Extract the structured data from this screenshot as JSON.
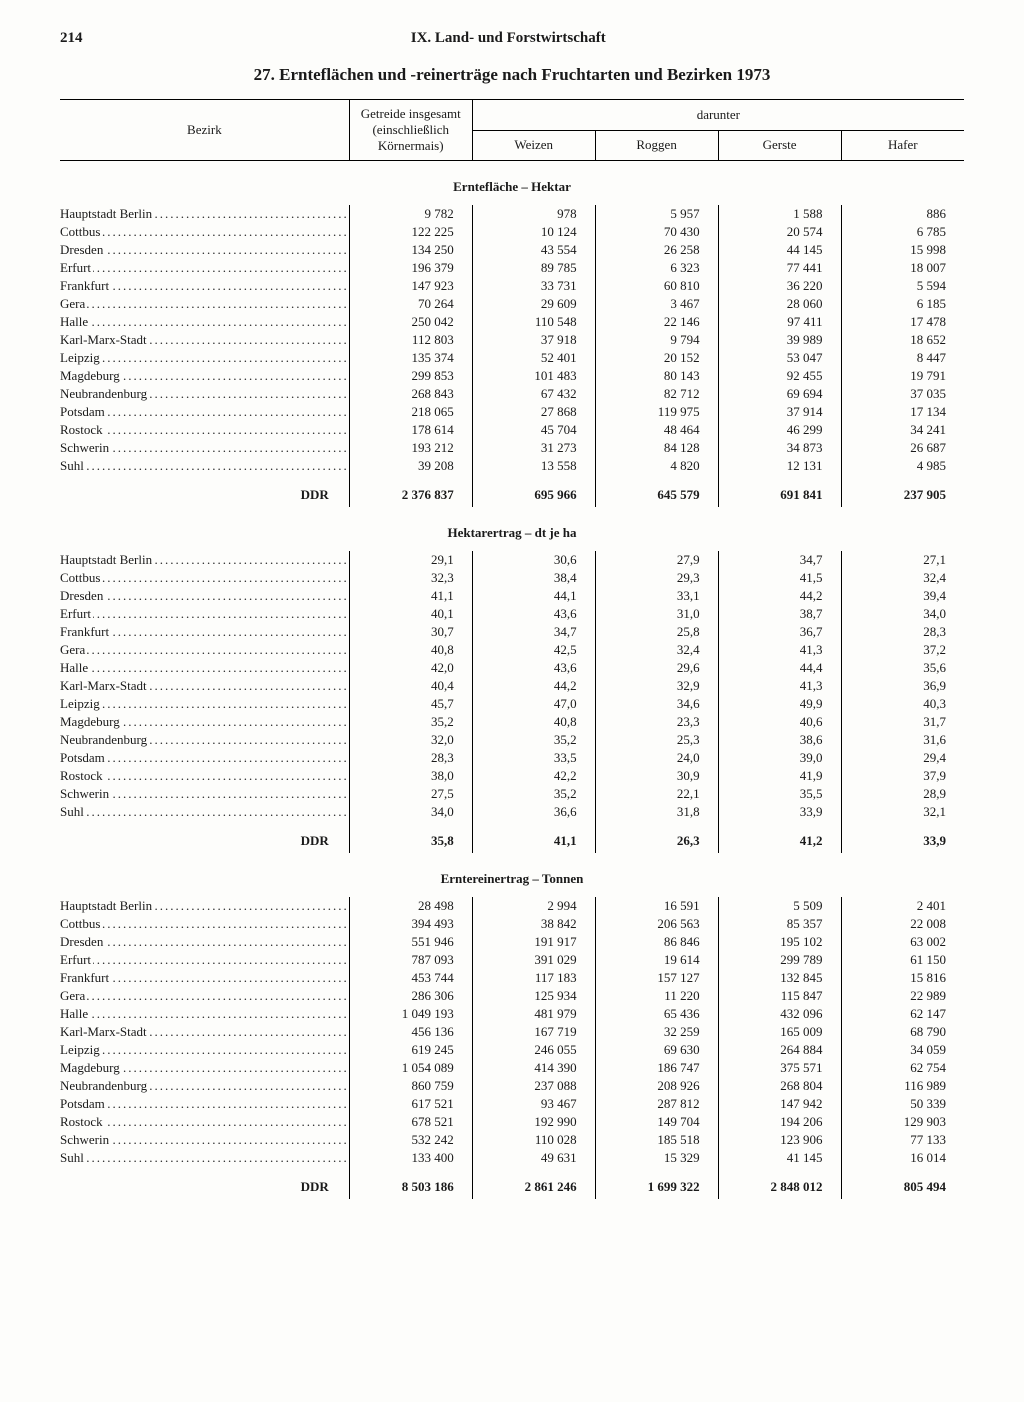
{
  "page_number": "214",
  "chapter": "IX. Land- und Forstwirtschaft",
  "title": "27. Ernteflächen und -reinerträge nach Fruchtarten und Bezirken 1973",
  "columns": {
    "bezirk": "Bezirk",
    "getreide": "Getreide insgesamt\n(einschließlich\nKörnermais)",
    "darunter": "darunter",
    "weizen": "Weizen",
    "roggen": "Roggen",
    "gerste": "Gerste",
    "hafer": "Hafer"
  },
  "total_label": "DDR",
  "sections": [
    {
      "title": "Erntefläche – Hektar",
      "rows": [
        {
          "b": "Hauptstadt Berlin",
          "v": [
            "9 782",
            "978",
            "5 957",
            "1 588",
            "886"
          ]
        },
        {
          "b": "Cottbus",
          "v": [
            "122 225",
            "10 124",
            "70 430",
            "20 574",
            "6 785"
          ]
        },
        {
          "b": "Dresden",
          "v": [
            "134 250",
            "43 554",
            "26 258",
            "44 145",
            "15 998"
          ]
        },
        {
          "b": "Erfurt",
          "v": [
            "196 379",
            "89 785",
            "6 323",
            "77 441",
            "18 007"
          ]
        },
        {
          "b": "Frankfurt",
          "v": [
            "147 923",
            "33 731",
            "60 810",
            "36 220",
            "5 594"
          ]
        },
        {
          "b": "Gera",
          "v": [
            "70 264",
            "29 609",
            "3 467",
            "28 060",
            "6 185"
          ]
        },
        {
          "b": "Halle",
          "v": [
            "250 042",
            "110 548",
            "22 146",
            "97 411",
            "17 478"
          ]
        },
        {
          "b": "Karl-Marx-Stadt",
          "v": [
            "112 803",
            "37 918",
            "9 794",
            "39 989",
            "18 652"
          ]
        },
        {
          "b": "Leipzig",
          "v": [
            "135 374",
            "52 401",
            "20 152",
            "53 047",
            "8 447"
          ]
        },
        {
          "b": "Magdeburg",
          "v": [
            "299 853",
            "101 483",
            "80 143",
            "92 455",
            "19 791"
          ]
        },
        {
          "b": "Neubrandenburg",
          "v": [
            "268 843",
            "67 432",
            "82 712",
            "69 694",
            "37 035"
          ]
        },
        {
          "b": "Potsdam",
          "v": [
            "218 065",
            "27 868",
            "119 975",
            "37 914",
            "17 134"
          ]
        },
        {
          "b": "Rostock",
          "v": [
            "178 614",
            "45 704",
            "48 464",
            "46 299",
            "34 241"
          ]
        },
        {
          "b": "Schwerin",
          "v": [
            "193 212",
            "31 273",
            "84 128",
            "34 873",
            "26 687"
          ]
        },
        {
          "b": "Suhl",
          "v": [
            "39 208",
            "13 558",
            "4 820",
            "12 131",
            "4 985"
          ]
        }
      ],
      "total": [
        "2 376 837",
        "695 966",
        "645 579",
        "691 841",
        "237 905"
      ]
    },
    {
      "title": "Hektarertrag – dt je ha",
      "rows": [
        {
          "b": "Hauptstadt Berlin",
          "v": [
            "29,1",
            "30,6",
            "27,9",
            "34,7",
            "27,1"
          ]
        },
        {
          "b": "Cottbus",
          "v": [
            "32,3",
            "38,4",
            "29,3",
            "41,5",
            "32,4"
          ]
        },
        {
          "b": "Dresden",
          "v": [
            "41,1",
            "44,1",
            "33,1",
            "44,2",
            "39,4"
          ]
        },
        {
          "b": "Erfurt",
          "v": [
            "40,1",
            "43,6",
            "31,0",
            "38,7",
            "34,0"
          ]
        },
        {
          "b": "Frankfurt",
          "v": [
            "30,7",
            "34,7",
            "25,8",
            "36,7",
            "28,3"
          ]
        },
        {
          "b": "Gera",
          "v": [
            "40,8",
            "42,5",
            "32,4",
            "41,3",
            "37,2"
          ]
        },
        {
          "b": "Halle",
          "v": [
            "42,0",
            "43,6",
            "29,6",
            "44,4",
            "35,6"
          ]
        },
        {
          "b": "Karl-Marx-Stadt",
          "v": [
            "40,4",
            "44,2",
            "32,9",
            "41,3",
            "36,9"
          ]
        },
        {
          "b": "Leipzig",
          "v": [
            "45,7",
            "47,0",
            "34,6",
            "49,9",
            "40,3"
          ]
        },
        {
          "b": "Magdeburg",
          "v": [
            "35,2",
            "40,8",
            "23,3",
            "40,6",
            "31,7"
          ]
        },
        {
          "b": "Neubrandenburg",
          "v": [
            "32,0",
            "35,2",
            "25,3",
            "38,6",
            "31,6"
          ]
        },
        {
          "b": "Potsdam",
          "v": [
            "28,3",
            "33,5",
            "24,0",
            "39,0",
            "29,4"
          ]
        },
        {
          "b": "Rostock",
          "v": [
            "38,0",
            "42,2",
            "30,9",
            "41,9",
            "37,9"
          ]
        },
        {
          "b": "Schwerin",
          "v": [
            "27,5",
            "35,2",
            "22,1",
            "35,5",
            "28,9"
          ]
        },
        {
          "b": "Suhl",
          "v": [
            "34,0",
            "36,6",
            "31,8",
            "33,9",
            "32,1"
          ]
        }
      ],
      "total": [
        "35,8",
        "41,1",
        "26,3",
        "41,2",
        "33,9"
      ]
    },
    {
      "title": "Erntereinertrag – Tonnen",
      "rows": [
        {
          "b": "Hauptstadt Berlin",
          "v": [
            "28 498",
            "2 994",
            "16 591",
            "5 509",
            "2 401"
          ]
        },
        {
          "b": "Cottbus",
          "v": [
            "394 493",
            "38 842",
            "206 563",
            "85 357",
            "22 008"
          ]
        },
        {
          "b": "Dresden",
          "v": [
            "551 946",
            "191 917",
            "86 846",
            "195 102",
            "63 002"
          ]
        },
        {
          "b": "Erfurt",
          "v": [
            "787 093",
            "391 029",
            "19 614",
            "299 789",
            "61 150"
          ]
        },
        {
          "b": "Frankfurt",
          "v": [
            "453 744",
            "117 183",
            "157 127",
            "132 845",
            "15 816"
          ]
        },
        {
          "b": "Gera",
          "v": [
            "286 306",
            "125 934",
            "11 220",
            "115 847",
            "22 989"
          ]
        },
        {
          "b": "Halle",
          "v": [
            "1 049 193",
            "481 979",
            "65 436",
            "432 096",
            "62 147"
          ]
        },
        {
          "b": "Karl-Marx-Stadt",
          "v": [
            "456 136",
            "167 719",
            "32 259",
            "165 009",
            "68 790"
          ]
        },
        {
          "b": "Leipzig",
          "v": [
            "619 245",
            "246 055",
            "69 630",
            "264 884",
            "34 059"
          ]
        },
        {
          "b": "Magdeburg",
          "v": [
            "1 054 089",
            "414 390",
            "186 747",
            "375 571",
            "62 754"
          ]
        },
        {
          "b": "Neubrandenburg",
          "v": [
            "860 759",
            "237 088",
            "208 926",
            "268 804",
            "116 989"
          ]
        },
        {
          "b": "Potsdam",
          "v": [
            "617 521",
            "93 467",
            "287 812",
            "147 942",
            "50 339"
          ]
        },
        {
          "b": "Rostock",
          "v": [
            "678 521",
            "192 990",
            "149 704",
            "194 206",
            "129 903"
          ]
        },
        {
          "b": "Schwerin",
          "v": [
            "532 242",
            "110 028",
            "185 518",
            "123 906",
            "77 133"
          ]
        },
        {
          "b": "Suhl",
          "v": [
            "133 400",
            "49 631",
            "15 329",
            "41 145",
            "16 014"
          ]
        }
      ],
      "total": [
        "8 503 186",
        "2 861 246",
        "1 699 322",
        "2 848 012",
        "805 494"
      ]
    }
  ]
}
